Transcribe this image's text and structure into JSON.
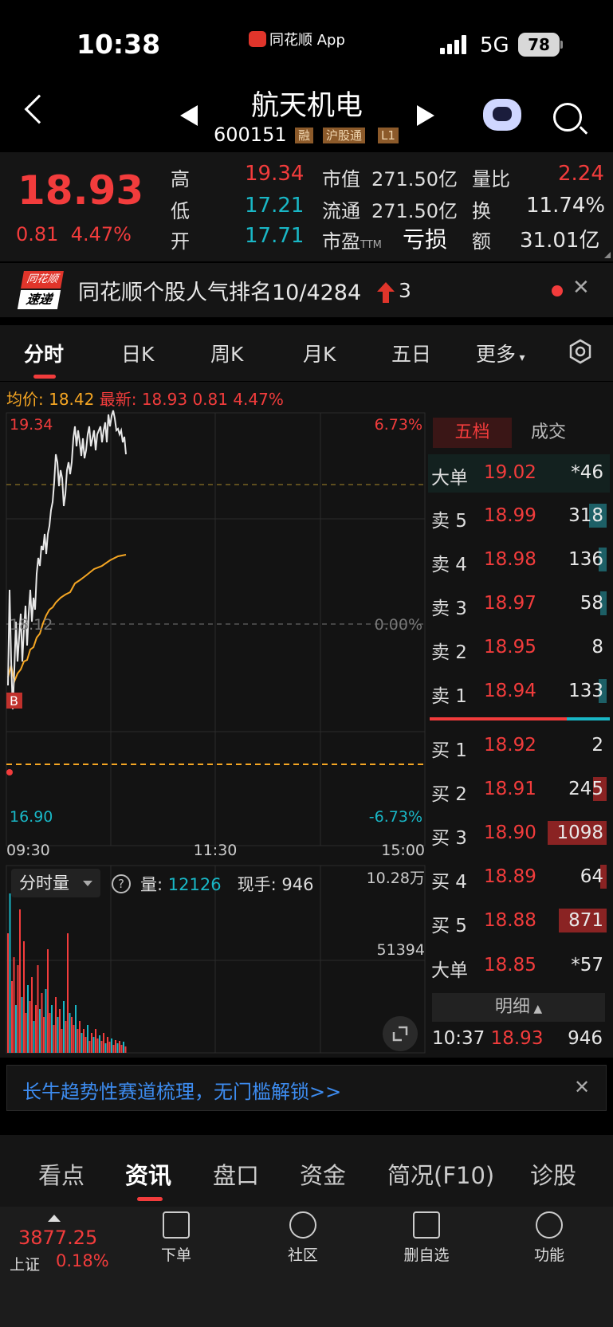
{
  "status_bar": {
    "time": "10:38",
    "app_label": "同花顺 App",
    "network": "5G",
    "battery": "78"
  },
  "header": {
    "title": "航天机电",
    "code": "600151",
    "tags": [
      "融",
      "沪股通",
      "L1"
    ]
  },
  "quote": {
    "price": "18.93",
    "change": "0.81",
    "change_pct": "4.47%",
    "fields": [
      {
        "label": "高",
        "value": "19.34",
        "color": "#f23c3c"
      },
      {
        "label": "低",
        "value": "17.21",
        "color": "#19b7c6"
      },
      {
        "label": "开",
        "value": "17.71",
        "color": "#19b7c6"
      }
    ],
    "market_cap_label": "市值",
    "market_cap": "271.50亿",
    "float_cap_label": "流通",
    "float_cap": "271.50亿",
    "pe_label": "市盈",
    "pe_sup": "TTM",
    "pe_value": "亏损",
    "vol_ratio_label": "量比",
    "vol_ratio": "2.24",
    "turnover_label": "换",
    "turnover": "11.74%",
    "amount_label": "额",
    "amount": "31.01亿"
  },
  "rank_banner": {
    "logo_top": "同花顺",
    "logo_bottom": "速递",
    "text": "同花顺个股人气排名10/4284",
    "up_count": "3"
  },
  "chart_tabs": [
    "分时",
    "日K",
    "周K",
    "月K",
    "五日",
    "更多"
  ],
  "chart": {
    "legend_avg": "均价: 18.42",
    "legend_latest": "最新: 18.93",
    "legend_change": "0.81",
    "legend_pct": "4.47%",
    "price_high": "19.34",
    "price_mid": "18.12",
    "price_low": "16.90",
    "pct_high": "6.73%",
    "pct_mid": "0.00%",
    "pct_low": "-6.73%",
    "time_start": "09:30",
    "time_mid": "11:30",
    "time_end": "15:00",
    "buy_marker": "B",
    "vol_dropdown": "分时量",
    "vol_label": "量:",
    "vol_value": "12126",
    "hand_label": "现手:",
    "hand_value": "946",
    "vol_max": "10.28万",
    "vol_mid": "51394"
  },
  "order_book": {
    "tab_five": "五档",
    "tab_deal": "成交",
    "big_sell": {
      "label": "大单",
      "price": "19.02",
      "vol": "*46"
    },
    "asks": [
      {
        "label": "卖 5",
        "price": "18.99",
        "vol": "318",
        "bar": 0.18
      },
      {
        "label": "卖 4",
        "price": "18.98",
        "vol": "136",
        "bar": 0.08
      },
      {
        "label": "卖 3",
        "price": "18.97",
        "vol": "58",
        "bar": 0.04
      },
      {
        "label": "卖 2",
        "price": "18.95",
        "vol": "8",
        "bar": 0.0
      },
      {
        "label": "卖 1",
        "price": "18.94",
        "vol": "133",
        "bar": 0.08
      }
    ],
    "bids": [
      {
        "label": "买 1",
        "price": "18.92",
        "vol": "2",
        "bar": 0.0
      },
      {
        "label": "买 2",
        "price": "18.91",
        "vol": "245",
        "bar": 0.14
      },
      {
        "label": "买 3",
        "price": "18.90",
        "vol": "1098",
        "bar": 0.62
      },
      {
        "label": "买 4",
        "price": "18.89",
        "vol": "64",
        "bar": 0.04
      },
      {
        "label": "买 5",
        "price": "18.88",
        "vol": "871",
        "bar": 0.5
      }
    ],
    "big_buy": {
      "label": "大单",
      "price": "18.85",
      "vol": "*57"
    },
    "detail_label": "明细",
    "detail_time": "10:37",
    "detail_price": "18.93",
    "detail_vol": "946"
  },
  "promo": {
    "text": "长牛趋势性赛道梳理，无门槛解锁>>"
  },
  "news_tabs": [
    "看点",
    "资讯",
    "盘口",
    "资金",
    "简况(F10)",
    "诊股"
  ],
  "bottom_nav": {
    "index_value": "3877.25",
    "index_name": "上证",
    "index_change": "0.18%",
    "items": [
      "下单",
      "社区",
      "删自选",
      "功能"
    ]
  },
  "colors": {
    "up": "#f23c3c",
    "down": "#19b7c6",
    "avg": "#f5a623",
    "price_line": "#e8e8e8",
    "bg": "#131313"
  }
}
